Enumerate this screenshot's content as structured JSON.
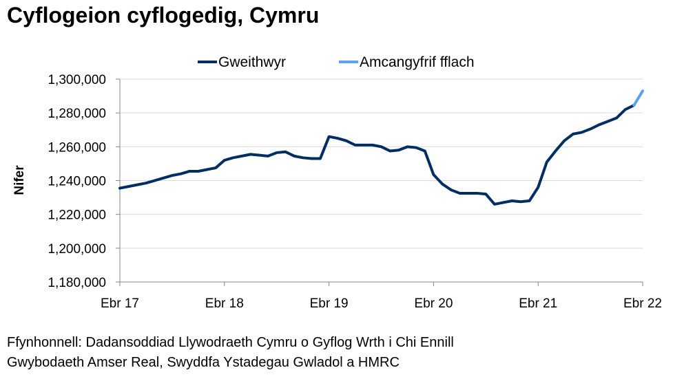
{
  "title": "Cyflogeion cyflogedig, Cymru",
  "source_lines": [
    "Ffynhonnell: Dadansoddiad Llywodraeth Cymru o Gyflog Wrth i Chi Ennill",
    "Gwybodaeth Amser Real, Swyddfa Ystadegau Gwladol a HMRC"
  ],
  "chart_data": {
    "type": "line",
    "title": "Cyflogeion cyflogedig, Cymru",
    "xlabel": "",
    "ylabel": "Nifer",
    "x_tick_labels": [
      "Ebr 17",
      "Ebr 18",
      "Ebr 19",
      "Ebr 20",
      "Ebr 21",
      "Ebr 22"
    ],
    "y_tick_labels": [
      "1,180,000",
      "1,200,000",
      "1,220,000",
      "1,240,000",
      "1,260,000",
      "1,280,000",
      "1,300,000"
    ],
    "ylim": [
      1180000,
      1300000
    ],
    "x_period": "monthly, Apr 2017 to Apr 2022",
    "legend_position": "top",
    "grid": "horizontal",
    "series": [
      {
        "name": "Gweithwyr",
        "color": "#002D62",
        "values": [
          1235500,
          1236500,
          1237500,
          1238500,
          1240000,
          1241500,
          1243000,
          1244000,
          1245500,
          1245500,
          1246500,
          1247500,
          1252000,
          1253500,
          1254500,
          1255500,
          1255000,
          1254500,
          1256500,
          1257000,
          1254500,
          1253500,
          1253000,
          1253000,
          1266000,
          1265000,
          1263500,
          1261000,
          1261000,
          1261000,
          1260000,
          1257500,
          1258000,
          1260000,
          1259500,
          1257500,
          1243500,
          1238000,
          1234500,
          1232500,
          1232500,
          1232500,
          1232000,
          1226000,
          1227000,
          1228000,
          1227500,
          1228000,
          1236000,
          1251000,
          1257500,
          1263500,
          1267500,
          1268500,
          1270500,
          1273000,
          1275000,
          1277000,
          1282000,
          1284500
        ]
      },
      {
        "name": "Amcangyfrif fflach",
        "color": "#5BA2F5",
        "start_index": 59,
        "values": [
          1284500,
          1293000
        ]
      }
    ]
  }
}
